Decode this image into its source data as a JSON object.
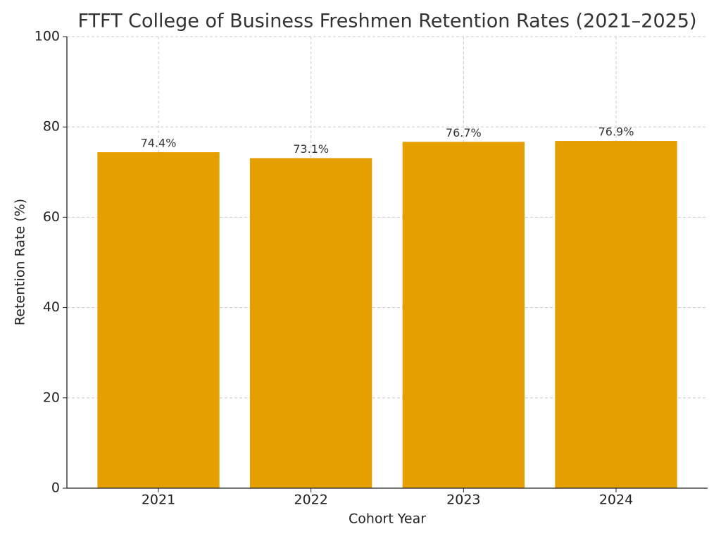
{
  "chart_data": {
    "type": "bar",
    "title": "FTFT College of Business Freshmen Retention Rates (2021–2025)",
    "x_label": "Cohort Year",
    "y_label": "Retention Rate (%)",
    "categories": [
      "2021",
      "2022",
      "2023",
      "2024"
    ],
    "values": [
      74.4,
      73.1,
      76.7,
      76.9
    ],
    "value_labels": [
      "74.4%",
      "73.1%",
      "76.7%",
      "76.9%"
    ],
    "color": "#e69f00",
    "ylim": [
      0,
      100
    ],
    "yticks": [
      0,
      20,
      40,
      60,
      80,
      100
    ],
    "grid": true
  }
}
